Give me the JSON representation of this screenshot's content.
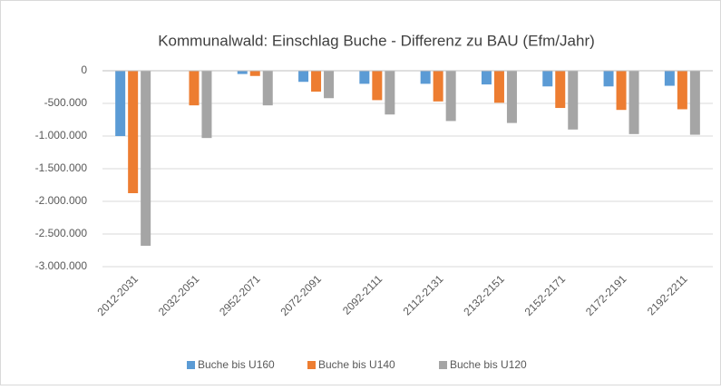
{
  "chart_data": {
    "type": "bar",
    "title": "Kommunalwald: Einschlag Buche - Differenz zu BAU (Efm/Jahr)",
    "categories": [
      "2012-2031",
      "2032-2051",
      "2952-2071",
      "2072-2091",
      "2092-2111",
      "2112-2131",
      "2132-2151",
      "2152-2171",
      "2172-2191",
      "2192-2211"
    ],
    "series": [
      {
        "name": "Buche bis U160",
        "color": "#5b9bd5",
        "values": [
          -1000000,
          0,
          -50000,
          -170000,
          -200000,
          -200000,
          -210000,
          -240000,
          -240000,
          -230000
        ]
      },
      {
        "name": "Buche bis U140",
        "color": "#ed7d31",
        "values": [
          -1875000,
          -530000,
          -80000,
          -320000,
          -450000,
          -470000,
          -490000,
          -570000,
          -600000,
          -590000
        ]
      },
      {
        "name": "Buche bis U120",
        "color": "#a5a5a5",
        "values": [
          -2680000,
          -1030000,
          -530000,
          -420000,
          -670000,
          -770000,
          -800000,
          -900000,
          -970000,
          -980000
        ]
      }
    ],
    "ylim": [
      -3000000,
      0
    ],
    "yticks": [
      0,
      {
        "value": -500000,
        "label": "-500.000"
      },
      {
        "value": -1000000,
        "label": "-1.000.000"
      },
      {
        "value": -1500000,
        "label": "-1.500.000"
      },
      {
        "value": -2000000,
        "label": "-2.000.000"
      },
      {
        "value": -2500000,
        "label": "-2.500.000"
      },
      {
        "value": -3000000,
        "label": "-3.000.000"
      }
    ],
    "legend": "bottom"
  }
}
